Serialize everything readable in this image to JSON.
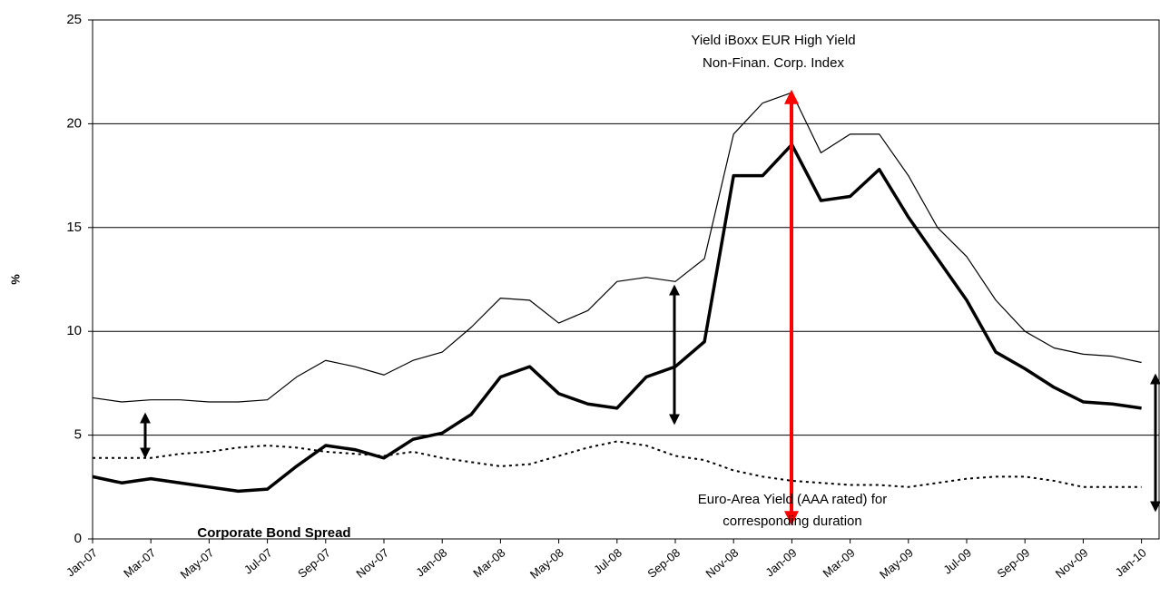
{
  "chart_data": {
    "type": "line",
    "y_label": "%",
    "x": [
      "Jan-07",
      "Feb-07",
      "Mar-07",
      "Apr-07",
      "May-07",
      "Jun-07",
      "Jul-07",
      "Aug-07",
      "Sep-07",
      "Oct-07",
      "Nov-07",
      "Dec-07",
      "Jan-08",
      "Feb-08",
      "Mar-08",
      "Apr-08",
      "May-08",
      "Jun-08",
      "Jul-08",
      "Aug-08",
      "Sep-08",
      "Oct-08",
      "Nov-08",
      "Dec-08",
      "Jan-09",
      "Feb-09",
      "Mar-09",
      "Apr-09",
      "May-09",
      "Jun-09",
      "Jul-09",
      "Aug-09",
      "Sep-09",
      "Oct-09",
      "Nov-09",
      "Dec-09",
      "Jan-10"
    ],
    "series": [
      {
        "color": "#000000",
        "line_width": 1.2,
        "line_style": "solid",
        "values": [
          6.8,
          6.6,
          6.7,
          6.7,
          6.6,
          6.6,
          6.7,
          7.8,
          8.6,
          8.3,
          7.9,
          8.6,
          9.0,
          10.2,
          11.6,
          11.5,
          10.4,
          11.0,
          12.4,
          12.6,
          12.4,
          13.5,
          19.5,
          21.0,
          21.5,
          18.6,
          19.5,
          19.5,
          17.5,
          15.0,
          13.6,
          11.5,
          10.0,
          9.2,
          8.9,
          8.8,
          8.5
        ]
      },
      {
        "color": "#000000",
        "line_width": 3.5,
        "line_style": "solid",
        "values": [
          3.0,
          2.7,
          2.9,
          2.7,
          2.5,
          2.3,
          2.4,
          3.5,
          4.5,
          4.3,
          3.9,
          4.8,
          5.1,
          6.0,
          7.8,
          8.3,
          7.0,
          6.5,
          6.3,
          7.8,
          8.3,
          9.5,
          17.5,
          17.5,
          19.0,
          16.3,
          16.5,
          17.8,
          15.5,
          13.5,
          11.5,
          9.0,
          8.2,
          7.3,
          6.6,
          6.5,
          6.3
        ]
      },
      {
        "color": "#000000",
        "line_width": 2,
        "line_style": "dotted",
        "values": [
          3.9,
          3.9,
          3.9,
          4.1,
          4.2,
          4.4,
          4.5,
          4.4,
          4.2,
          4.1,
          4.0,
          4.2,
          3.9,
          3.7,
          3.5,
          3.6,
          4.0,
          4.4,
          4.7,
          4.5,
          4.0,
          3.8,
          3.3,
          3.0,
          2.8,
          2.7,
          2.6,
          2.6,
          2.5,
          2.7,
          2.9,
          3.0,
          3.0,
          2.8,
          2.5,
          2.5,
          2.5
        ]
      }
    ],
    "annotations": [
      "Yield iBoxx EUR High Yield",
      "Non-Finan. Corp. Index",
      "Corporate Bond Spread",
      "Euro-Area Yield (AAA rated) for",
      "corresponding duration"
    ],
    "ylim": [
      0,
      25
    ],
    "yticks": [
      0,
      5,
      10,
      15,
      20,
      25
    ],
    "grid": true
  }
}
